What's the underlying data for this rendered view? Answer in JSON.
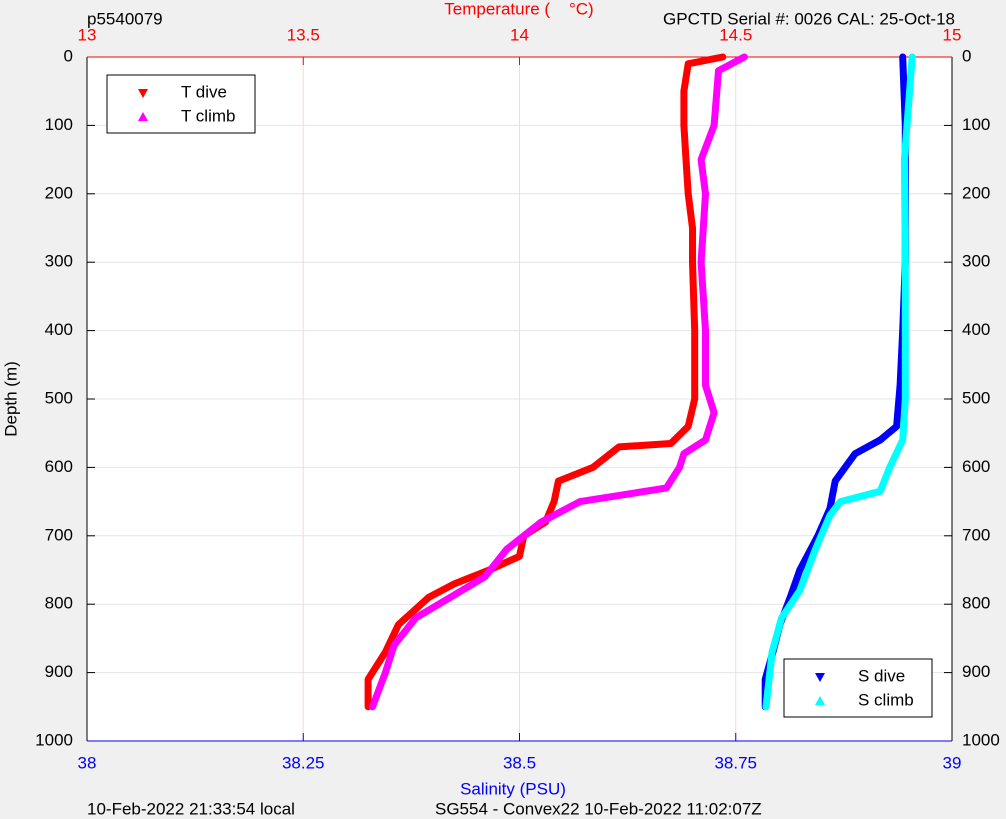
{
  "chart_data": {
    "type": "profile",
    "title": "Temperature (    °C)",
    "subtitle_left": "p5540079",
    "subtitle_right": "GPCTD Serial #: 0026 CAL: 25-Oct-18",
    "xlabel": "Salinity (PSU)",
    "ylabel": "Depth (m)",
    "footer_left": "10-Feb-2022 21:33:54 local",
    "footer_right": "SG554 - Convex22 10-Feb-2022 11:02:07Z",
    "xlim": [
      38,
      39
    ],
    "xticks": [
      38,
      38.25,
      38.5,
      38.75,
      39
    ],
    "x_color": "#0000ff",
    "x2lim": [
      13,
      15
    ],
    "x2ticks": [
      13,
      13.5,
      14,
      14.5,
      15
    ],
    "x2_color": "#ff0000",
    "ylim": [
      0,
      1000
    ],
    "yticks": [
      0,
      100,
      200,
      300,
      400,
      500,
      600,
      700,
      800,
      900,
      1000
    ],
    "y_reversed": true,
    "grid": true,
    "series": [
      {
        "name": "T dive",
        "color": "#ff0000",
        "axis": "x2",
        "marker": "down",
        "legend": "upper-left",
        "x": [
          14.47,
          14.39,
          14.38,
          14.38,
          14.385,
          14.39,
          14.4,
          14.4,
          14.405,
          14.405,
          14.39,
          14.35,
          14.23,
          14.17,
          14.09,
          14.08,
          14.06,
          14.01,
          14.0,
          13.93,
          13.85,
          13.79,
          13.72,
          13.69,
          13.65,
          13.65
        ],
        "values": [
          0,
          10,
          50,
          100,
          150,
          200,
          250,
          300,
          400,
          500,
          540,
          565,
          570,
          600,
          620,
          650,
          680,
          700,
          730,
          750,
          770,
          790,
          830,
          870,
          910,
          950
        ]
      },
      {
        "name": "T climb",
        "color": "#ff00ff",
        "axis": "x2",
        "marker": "up",
        "legend": "upper-left",
        "x": [
          14.52,
          14.46,
          14.45,
          14.42,
          14.43,
          14.42,
          14.43,
          14.43,
          14.45,
          14.43,
          14.38,
          14.37,
          14.34,
          14.24,
          14.14,
          14.11,
          14.05,
          13.97,
          13.92,
          13.84,
          13.76,
          13.71,
          13.69,
          13.66
        ],
        "values": [
          0,
          20,
          100,
          150,
          200,
          300,
          400,
          480,
          520,
          560,
          580,
          600,
          630,
          640,
          650,
          660,
          680,
          720,
          760,
          790,
          820,
          860,
          900,
          950
        ]
      },
      {
        "name": "S dive",
        "color": "#0000ff",
        "axis": "x",
        "marker": "down",
        "legend": "lower-right",
        "x": [
          38.943,
          38.946,
          38.946,
          38.946,
          38.943,
          38.94,
          38.936,
          38.917,
          38.888,
          38.865,
          38.859,
          38.845,
          38.824,
          38.813,
          38.801,
          38.793,
          38.784,
          38.784
        ],
        "values": [
          0,
          100,
          200,
          300,
          400,
          480,
          540,
          560,
          580,
          620,
          660,
          700,
          750,
          790,
          830,
          870,
          910,
          950
        ]
      },
      {
        "name": "S climb",
        "color": "#00ffff",
        "axis": "x",
        "marker": "up",
        "legend": "lower-right",
        "x": [
          38.954,
          38.948,
          38.945,
          38.946,
          38.946,
          38.943,
          38.928,
          38.917,
          38.871,
          38.859,
          38.842,
          38.824,
          38.803,
          38.792,
          38.785
        ],
        "values": [
          0,
          100,
          150,
          300,
          500,
          560,
          600,
          635,
          650,
          670,
          720,
          780,
          820,
          870,
          950
        ]
      }
    ]
  }
}
